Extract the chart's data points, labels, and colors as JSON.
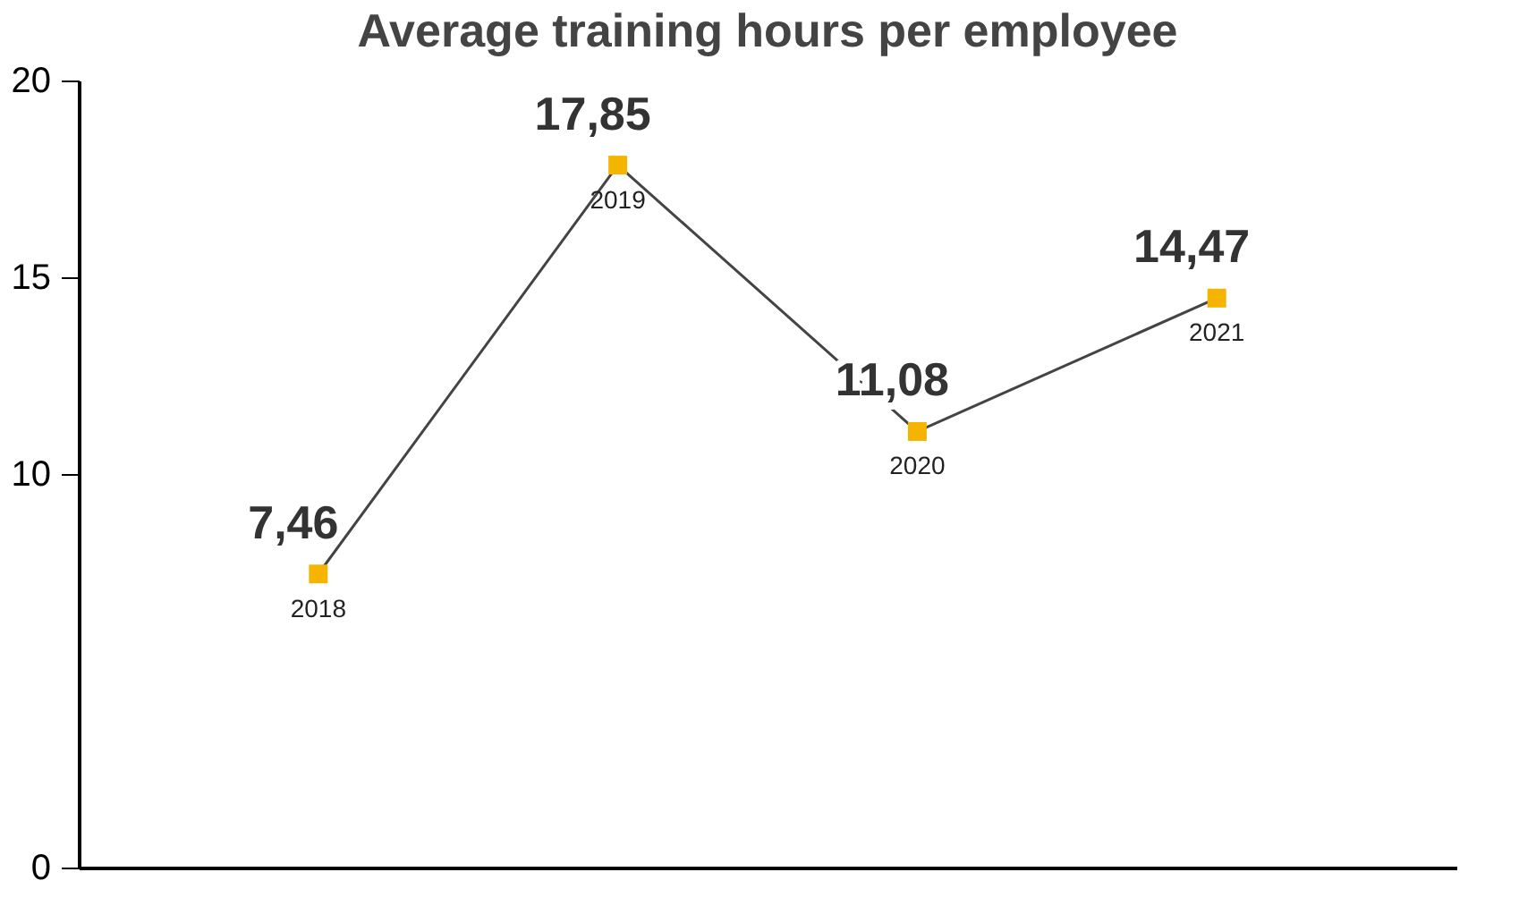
{
  "chart_data": {
    "type": "line",
    "title": "Average training hours per employee",
    "categories": [
      "2018",
      "2019",
      "2020",
      "2021"
    ],
    "series": [
      {
        "color": "#f5b400",
        "values": [
          7.46,
          17.85,
          11.08,
          14.47
        ],
        "value_labels": [
          "7,46",
          "17,85",
          "11,08",
          "14,47"
        ]
      }
    ],
    "marker": "square",
    "ylim": [
      0,
      20
    ],
    "yticks": [
      0,
      10,
      15,
      20
    ],
    "grid": false
  }
}
